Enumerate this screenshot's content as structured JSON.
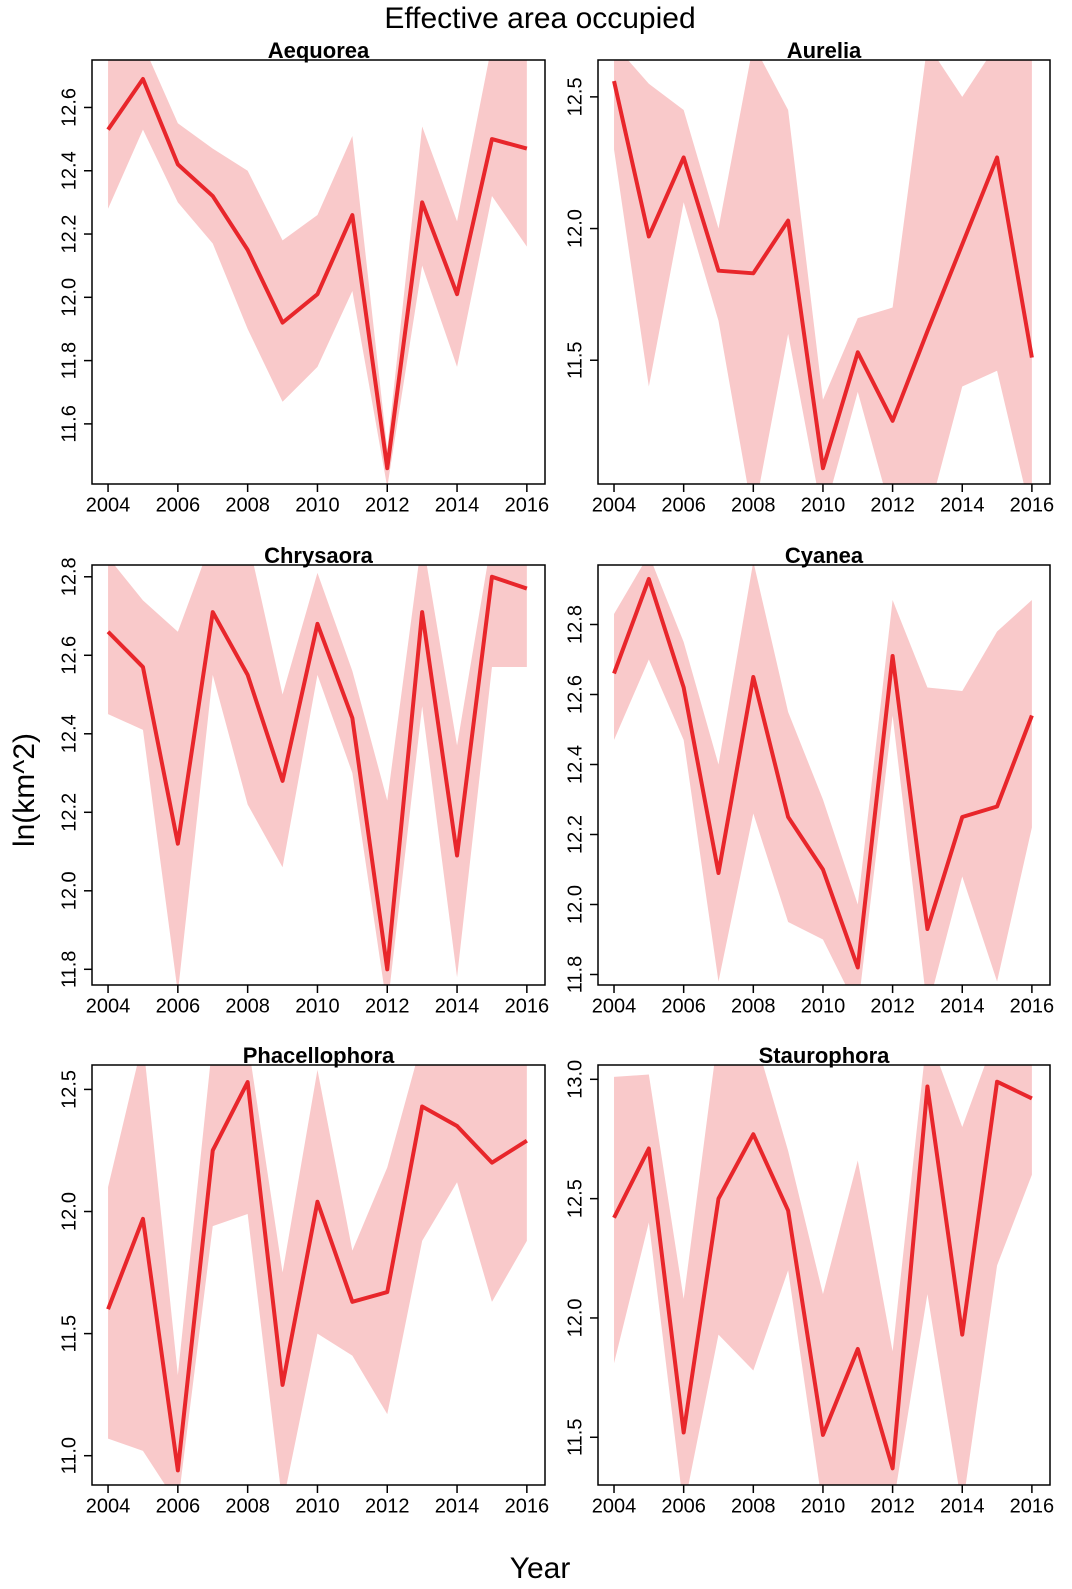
{
  "title": "Effective area occupied",
  "xlabel": "Year",
  "ylabel": "ln(km^2)",
  "chart_data": [
    {
      "type": "line",
      "title": "Aequorea",
      "color": "#e8262b",
      "band_color": "#f9c9ca",
      "x": [
        2004,
        2005,
        2006,
        2007,
        2008,
        2009,
        2010,
        2011,
        2012,
        2013,
        2014,
        2015,
        2016
      ],
      "values": [
        12.53,
        12.69,
        12.42,
        12.32,
        12.15,
        11.92,
        12.01,
        12.26,
        11.46,
        12.3,
        12.01,
        12.5,
        12.47
      ],
      "lower": [
        12.28,
        12.53,
        12.3,
        12.17,
        11.9,
        11.67,
        11.78,
        12.02,
        11.4,
        12.1,
        11.78,
        12.32,
        12.16
      ],
      "upper": [
        12.75,
        12.8,
        12.55,
        12.47,
        12.4,
        12.18,
        12.26,
        12.51,
        11.52,
        12.54,
        12.24,
        12.8,
        12.8
      ],
      "xlim": [
        2003.54,
        2016.52
      ],
      "ylim": [
        11.41,
        12.75
      ],
      "xticks": [
        2004,
        2006,
        2008,
        2010,
        2012,
        2014,
        2016
      ],
      "yticks": [
        11.6,
        11.8,
        {
          "value": 12,
          "label": "12.0"
        },
        12.2,
        12.4,
        12.6
      ]
    },
    {
      "type": "line",
      "title": "Aurelia",
      "color": "#e8262b",
      "band_color": "#f9c9ca",
      "x": [
        2004,
        2005,
        2006,
        2007,
        2008,
        2009,
        2010,
        2011,
        2012,
        2013,
        2014,
        2015,
        2016
      ],
      "values": [
        12.56,
        11.97,
        12.27,
        11.84,
        11.83,
        12.03,
        11.09,
        11.53,
        11.27,
        11.61,
        11.94,
        12.27,
        11.51
      ],
      "lower": [
        12.3,
        11.4,
        12.1,
        11.65,
        10.9,
        11.6,
        10.9,
        11.38,
        10.9,
        10.9,
        11.4,
        11.46,
        10.9
      ],
      "upper": [
        12.7,
        12.55,
        12.45,
        12.0,
        12.7,
        12.45,
        11.35,
        11.66,
        11.7,
        12.7,
        12.5,
        12.7,
        12.7
      ],
      "xlim": [
        2003.54,
        2016.52
      ],
      "ylim": [
        11.03,
        12.64
      ],
      "xticks": [
        2004,
        2006,
        2008,
        2010,
        2012,
        2014,
        2016
      ],
      "yticks": [
        11.5,
        {
          "value": 12,
          "label": "12.0"
        },
        12.5
      ]
    },
    {
      "type": "line",
      "title": "Chrysaora",
      "color": "#e8262b",
      "band_color": "#f9c9ca",
      "x": [
        2004,
        2005,
        2006,
        2007,
        2008,
        2009,
        2010,
        2011,
        2012,
        2013,
        2014,
        2015,
        2016
      ],
      "values": [
        12.66,
        12.57,
        12.12,
        12.71,
        12.55,
        12.28,
        12.68,
        12.44,
        11.8,
        12.71,
        12.09,
        12.8,
        12.77
      ],
      "lower": [
        12.45,
        12.41,
        11.74,
        12.55,
        12.22,
        12.06,
        12.55,
        12.3,
        11.7,
        12.47,
        11.78,
        12.57,
        12.57
      ],
      "upper": [
        12.85,
        12.74,
        12.66,
        12.9,
        12.9,
        12.5,
        12.81,
        12.56,
        12.23,
        12.9,
        12.37,
        12.9,
        12.9
      ],
      "xlim": [
        2003.54,
        2016.52
      ],
      "ylim": [
        11.76,
        12.83
      ],
      "xticks": [
        2004,
        2006,
        2008,
        2010,
        2012,
        2014,
        2016
      ],
      "yticks": [
        11.8,
        {
          "value": 12,
          "label": "12.0"
        },
        12.2,
        12.4,
        12.6,
        12.8
      ]
    },
    {
      "type": "line",
      "title": "Cyanea",
      "color": "#e8262b",
      "band_color": "#f9c9ca",
      "x": [
        2004,
        2005,
        2006,
        2007,
        2008,
        2009,
        2010,
        2011,
        2012,
        2013,
        2014,
        2015,
        2016
      ],
      "values": [
        12.66,
        12.93,
        12.62,
        12.09,
        12.65,
        12.25,
        12.1,
        11.82,
        12.71,
        11.93,
        12.25,
        12.28,
        12.54
      ],
      "lower": [
        12.47,
        12.7,
        12.47,
        11.78,
        12.26,
        11.95,
        11.9,
        11.7,
        12.54,
        11.7,
        12.08,
        11.78,
        12.22
      ],
      "upper": [
        12.83,
        13.0,
        12.75,
        12.4,
        12.98,
        12.55,
        12.3,
        12.0,
        12.87,
        12.62,
        12.61,
        12.78,
        12.87
      ],
      "xlim": [
        2003.54,
        2016.52
      ],
      "ylim": [
        11.77,
        12.97
      ],
      "xticks": [
        2004,
        2006,
        2008,
        2010,
        2012,
        2014,
        2016
      ],
      "yticks": [
        11.8,
        {
          "value": 12,
          "label": "12.0"
        },
        12.2,
        12.4,
        12.6,
        12.8
      ]
    },
    {
      "type": "line",
      "title": "Phacellophora",
      "color": "#e8262b",
      "band_color": "#f9c9ca",
      "x": [
        2004,
        2005,
        2006,
        2007,
        2008,
        2009,
        2010,
        2011,
        2012,
        2013,
        2014,
        2015,
        2016
      ],
      "values": [
        11.6,
        11.97,
        10.94,
        12.25,
        12.53,
        11.29,
        12.04,
        11.63,
        11.67,
        12.43,
        12.35,
        12.2,
        12.29
      ],
      "lower": [
        11.07,
        11.02,
        10.8,
        11.94,
        11.99,
        10.8,
        11.5,
        11.41,
        11.17,
        11.88,
        12.12,
        11.63,
        11.88
      ],
      "upper": [
        12.1,
        12.7,
        11.33,
        12.7,
        12.7,
        11.75,
        12.58,
        11.84,
        12.18,
        12.7,
        12.7,
        12.7,
        12.7
      ],
      "xlim": [
        2003.54,
        2016.52
      ],
      "ylim": [
        10.88,
        12.6
      ],
      "xticks": [
        2004,
        2006,
        2008,
        2010,
        2012,
        2014,
        2016
      ],
      "yticks": [
        {
          "value": 11,
          "label": "11.0"
        },
        11.5,
        {
          "value": 12,
          "label": "12.0"
        },
        12.5
      ]
    },
    {
      "type": "line",
      "title": "Staurophora",
      "color": "#e8262b",
      "band_color": "#f9c9ca",
      "x": [
        2004,
        2005,
        2006,
        2007,
        2008,
        2009,
        2010,
        2011,
        2012,
        2013,
        2014,
        2015,
        2016
      ],
      "values": [
        12.42,
        12.71,
        11.52,
        12.5,
        12.77,
        12.45,
        11.51,
        11.87,
        11.37,
        12.97,
        11.93,
        12.99,
        12.92
      ],
      "lower": [
        11.81,
        12.4,
        11.2,
        11.93,
        11.78,
        12.2,
        11.2,
        11.2,
        11.2,
        12.1,
        11.2,
        12.22,
        12.6
      ],
      "upper": [
        13.01,
        13.02,
        12.08,
        13.2,
        13.2,
        12.7,
        12.1,
        12.66,
        11.86,
        13.2,
        12.8,
        13.2,
        13.2
      ],
      "xlim": [
        2003.54,
        2016.52
      ],
      "ylim": [
        11.3,
        13.06
      ],
      "xticks": [
        2004,
        2006,
        2008,
        2010,
        2012,
        2014,
        2016
      ],
      "yticks": [
        11.5,
        {
          "value": 12,
          "label": "12.0"
        },
        12.5,
        {
          "value": 13,
          "label": "13.0"
        }
      ]
    }
  ]
}
